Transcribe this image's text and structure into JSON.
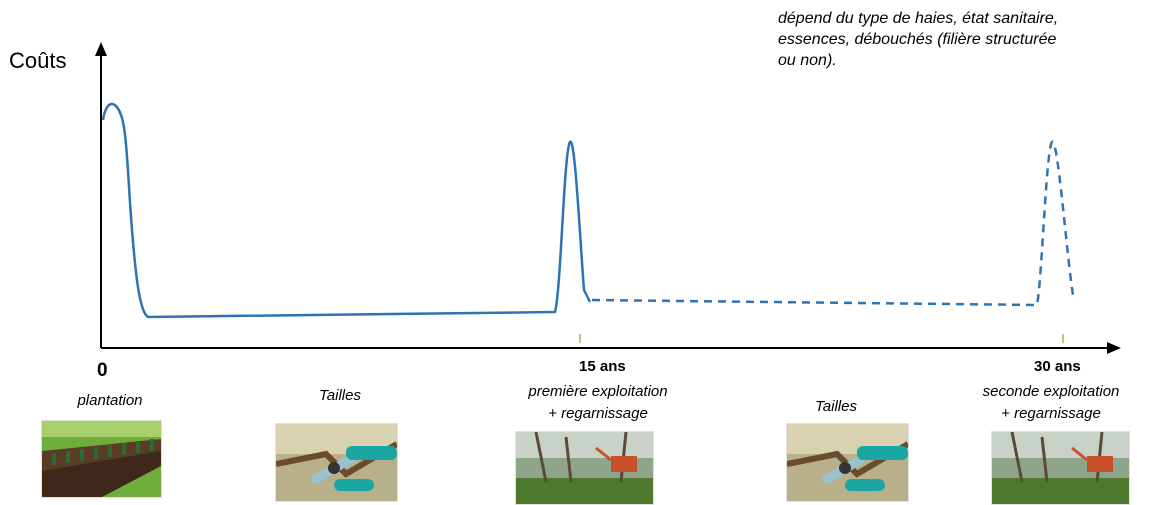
{
  "axis": {
    "y_label": "Coûts",
    "origin_label": "0"
  },
  "note": "dépend du type de haies, état sanitaire, essences, débouchés (filière structurée ou non).",
  "milestones": [
    {
      "tick": "15 ans",
      "line1": "première exploitation",
      "line2": "+ regarnissage"
    },
    {
      "tick": "30 ans",
      "line1": "seconde exploitation",
      "line2": "+ regarnissage"
    }
  ],
  "stages": [
    {
      "label": "plantation",
      "image": "hedge-planting-photo"
    },
    {
      "label": "Tailles",
      "image": "pruning-shears-photo"
    },
    {
      "label": "",
      "image": "forestry-machine-photo"
    },
    {
      "label": "Tailles",
      "image": "pruning-shears-photo"
    },
    {
      "label": "",
      "image": "forestry-machine-photo"
    }
  ],
  "colors": {
    "curve": "#2e74b5",
    "axis": "#000000",
    "tick": "#9bbb59"
  }
}
